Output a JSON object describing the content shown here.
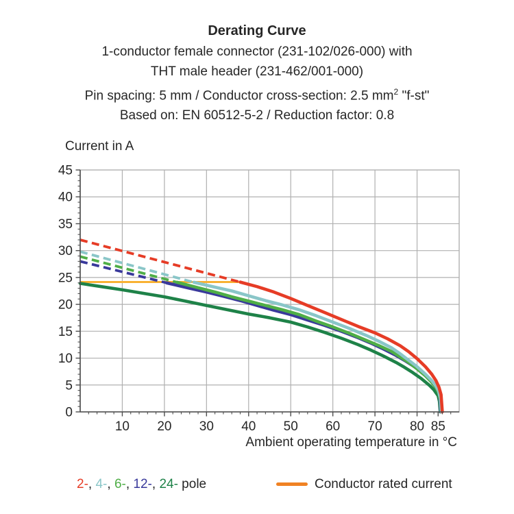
{
  "page": {
    "background": "#ffffff",
    "text_color": "#262626"
  },
  "header": {
    "title": "Derating Curve",
    "line2": "1-conductor female connector (231-102/026-000) with",
    "line3": "THT male header (231-462/001-000)",
    "line4_pre": "Pin spacing: 5 mm / Conductor cross-section: 2.5 mm",
    "line4_sup": "2",
    "line4_post": " \"f-st\"",
    "line5": "Based on: EN 60512-5-2 / Reduction factor: 0.8"
  },
  "chart_data": {
    "type": "line",
    "title": "Derating Curve",
    "ylabel": "Current in A",
    "xlabel": "Ambient operating temperature in °C",
    "xlim": [
      0,
      90
    ],
    "ylim": [
      0,
      45
    ],
    "xticks": [
      10,
      20,
      30,
      40,
      50,
      60,
      70,
      80,
      85
    ],
    "yticks": [
      0,
      5,
      10,
      15,
      20,
      25,
      30,
      35,
      40,
      45
    ],
    "x_minor_step": 2,
    "y_minor_step": 1,
    "grid": true,
    "grid_color": "#b0b0b0",
    "axis_color": "#4d4d4d",
    "rated_current": {
      "label": "Conductor rated current",
      "value": 24.15,
      "x_start": 0,
      "x_end": 37.8,
      "color": "#f9b233"
    },
    "series": [
      {
        "name": "24-pole",
        "color": "#1e8248",
        "dashed": [],
        "solid": [
          [
            0,
            23.9
          ],
          [
            5,
            23.3
          ],
          [
            10,
            22.7
          ],
          [
            15,
            22.05
          ],
          [
            20,
            21.4
          ],
          [
            25,
            20.6
          ],
          [
            30,
            19.8
          ],
          [
            35,
            19.0
          ],
          [
            40,
            18.2
          ],
          [
            45,
            17.5
          ],
          [
            50,
            16.7
          ],
          [
            54,
            15.8
          ],
          [
            58,
            14.8
          ],
          [
            62,
            13.7
          ],
          [
            66,
            12.5
          ],
          [
            69,
            11.5
          ],
          [
            72,
            10.4
          ],
          [
            75,
            9.2
          ],
          [
            77,
            8.3
          ],
          [
            79,
            7.3
          ],
          [
            81,
            6.2
          ],
          [
            83,
            4.9
          ],
          [
            84,
            4.1
          ],
          [
            85,
            3.0
          ],
          [
            85.3,
            2.0
          ],
          [
            85.5,
            0
          ]
        ]
      },
      {
        "name": "12-pole",
        "color": "#39399b",
        "dashed": [
          [
            0,
            28.0
          ],
          [
            20.5,
            24.0
          ]
        ],
        "solid": [
          [
            20.5,
            24.0
          ],
          [
            26,
            23.0
          ],
          [
            30,
            22.3
          ],
          [
            34,
            21.5
          ],
          [
            38,
            20.7
          ],
          [
            42,
            19.8
          ],
          [
            46,
            18.9
          ],
          [
            50,
            18.1
          ],
          [
            54,
            17.1
          ],
          [
            58,
            16.1
          ],
          [
            62,
            15.0
          ],
          [
            66,
            13.8
          ],
          [
            69,
            12.8
          ],
          [
            72,
            11.7
          ],
          [
            75,
            10.5
          ],
          [
            77,
            9.6
          ],
          [
            79,
            8.6
          ],
          [
            81,
            7.5
          ],
          [
            83,
            6.1
          ],
          [
            84,
            5.2
          ],
          [
            85,
            4.0
          ],
          [
            85.4,
            2.9
          ],
          [
            85.6,
            0
          ]
        ]
      },
      {
        "name": "6-pole",
        "color": "#4fae47",
        "dashed": [
          [
            0,
            28.9
          ],
          [
            23,
            24.1
          ]
        ],
        "solid": [
          [
            23,
            24.1
          ],
          [
            28,
            23.1
          ],
          [
            32,
            22.3
          ],
          [
            36,
            21.4
          ],
          [
            40,
            20.6
          ],
          [
            44,
            19.8
          ],
          [
            48,
            19.0
          ],
          [
            52,
            18.1
          ],
          [
            56,
            16.9
          ],
          [
            60,
            15.8
          ],
          [
            64,
            14.6
          ],
          [
            68,
            13.3
          ],
          [
            71,
            12.3
          ],
          [
            74,
            11.2
          ],
          [
            76,
            10.2
          ],
          [
            78,
            9.2
          ],
          [
            80,
            8.0
          ],
          [
            82,
            6.7
          ],
          [
            83.5,
            5.5
          ],
          [
            84.5,
            4.5
          ],
          [
            85.1,
            3.6
          ],
          [
            85.5,
            2.4
          ],
          [
            85.7,
            0
          ]
        ]
      },
      {
        "name": "4-pole",
        "color": "#8ac6c8",
        "dashed": [
          [
            0,
            29.8
          ],
          [
            27,
            24.1
          ]
        ],
        "solid": [
          [
            27,
            24.1
          ],
          [
            32,
            23.2
          ],
          [
            36,
            22.5
          ],
          [
            40,
            21.6
          ],
          [
            44,
            20.7
          ],
          [
            48,
            19.9
          ],
          [
            52,
            19.0
          ],
          [
            56,
            17.9
          ],
          [
            60,
            16.7
          ],
          [
            64,
            15.5
          ],
          [
            68,
            14.2
          ],
          [
            71,
            13.1
          ],
          [
            74,
            11.9
          ],
          [
            76,
            10.8
          ],
          [
            78,
            9.6
          ],
          [
            80,
            8.4
          ],
          [
            82,
            7.0
          ],
          [
            83.5,
            5.8
          ],
          [
            84.5,
            4.8
          ],
          [
            85.1,
            3.9
          ],
          [
            85.5,
            2.6
          ],
          [
            85.75,
            0
          ]
        ]
      },
      {
        "name": "2-pole",
        "color": "#e63c26",
        "dashed": [
          [
            0,
            32.0
          ],
          [
            38,
            24.15
          ]
        ],
        "solid": [
          [
            38,
            24.15
          ],
          [
            42,
            23.3
          ],
          [
            46,
            22.3
          ],
          [
            50,
            21.1
          ],
          [
            54,
            19.8
          ],
          [
            58,
            18.5
          ],
          [
            62,
            17.2
          ],
          [
            66,
            15.9
          ],
          [
            70,
            14.7
          ],
          [
            73,
            13.6
          ],
          [
            76,
            12.3
          ],
          [
            78,
            11.2
          ],
          [
            80,
            9.9
          ],
          [
            82,
            8.4
          ],
          [
            83.5,
            7.0
          ],
          [
            84.5,
            5.8
          ],
          [
            85.2,
            4.6
          ],
          [
            85.7,
            3.2
          ],
          [
            86,
            0
          ]
        ]
      }
    ]
  },
  "legend": {
    "pole_items": [
      {
        "label": "2-",
        "color": "#e63c26"
      },
      {
        "label": "4-",
        "color": "#8ac6c8"
      },
      {
        "label": "6-",
        "color": "#4fae47"
      },
      {
        "label": "12-",
        "color": "#39399b"
      },
      {
        "label": "24-",
        "color": "#1e8248"
      }
    ],
    "separator": ", ",
    "pole_suffix": " pole",
    "rated_label": "Conductor rated current",
    "rated_swatch_color": "#f08223"
  }
}
